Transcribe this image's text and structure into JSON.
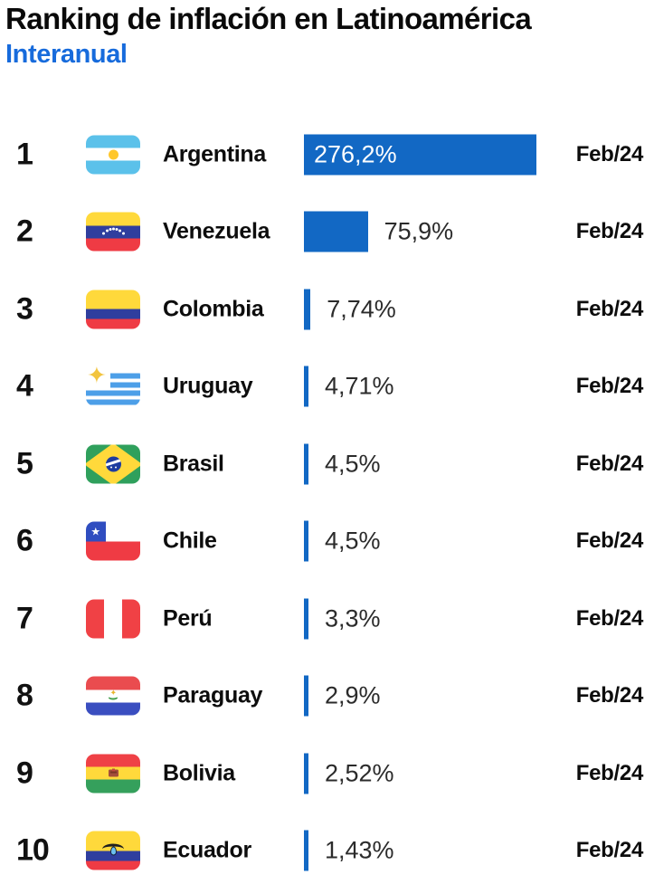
{
  "header": {
    "title": "Ranking de inflación en Latinoamérica",
    "subtitle": "Interanual",
    "title_color": "#0a0a0a",
    "subtitle_color": "#176bdc"
  },
  "chart_data": {
    "type": "bar",
    "orientation": "horizontal",
    "title": "Ranking de inflación en Latinoamérica",
    "subtitle": "Interanual",
    "value_unit": "%",
    "xlim": [
      0,
      276.2
    ],
    "bar_color": "#1268c4",
    "grid": false,
    "legend": false,
    "categories": [
      "Argentina",
      "Venezuela",
      "Colombia",
      "Uruguay",
      "Brasil",
      "Chile",
      "Perú",
      "Paraguay",
      "Bolivia",
      "Ecuador"
    ],
    "values": [
      276.2,
      75.9,
      7.74,
      4.71,
      4.5,
      4.5,
      3.3,
      2.9,
      2.52,
      1.43
    ],
    "rows": [
      {
        "rank": "1",
        "country": "Argentina",
        "flag": "argentina",
        "value": 276.2,
        "value_label": "276,2%",
        "date": "Feb/24"
      },
      {
        "rank": "2",
        "country": "Venezuela",
        "flag": "venezuela",
        "value": 75.9,
        "value_label": "75,9%",
        "date": "Feb/24"
      },
      {
        "rank": "3",
        "country": "Colombia",
        "flag": "colombia",
        "value": 7.74,
        "value_label": "7,74%",
        "date": "Feb/24"
      },
      {
        "rank": "4",
        "country": "Uruguay",
        "flag": "uruguay",
        "value": 4.71,
        "value_label": "4,71%",
        "date": "Feb/24"
      },
      {
        "rank": "5",
        "country": "Brasil",
        "flag": "brasil",
        "value": 4.5,
        "value_label": "4,5%",
        "date": "Feb/24"
      },
      {
        "rank": "6",
        "country": "Chile",
        "flag": "chile",
        "value": 4.5,
        "value_label": "4,5%",
        "date": "Feb/24"
      },
      {
        "rank": "7",
        "country": "Perú",
        "flag": "peru",
        "value": 3.3,
        "value_label": "3,3%",
        "date": "Feb/24"
      },
      {
        "rank": "8",
        "country": "Paraguay",
        "flag": "paraguay",
        "value": 2.9,
        "value_label": "2,9%",
        "date": "Feb/24"
      },
      {
        "rank": "9",
        "country": "Bolivia",
        "flag": "bolivia",
        "value": 2.52,
        "value_label": "2,52%",
        "date": "Feb/24"
      },
      {
        "rank": "10",
        "country": "Ecuador",
        "flag": "ecuador",
        "value": 1.43,
        "value_label": "1,43%",
        "date": "Feb/24"
      }
    ]
  }
}
